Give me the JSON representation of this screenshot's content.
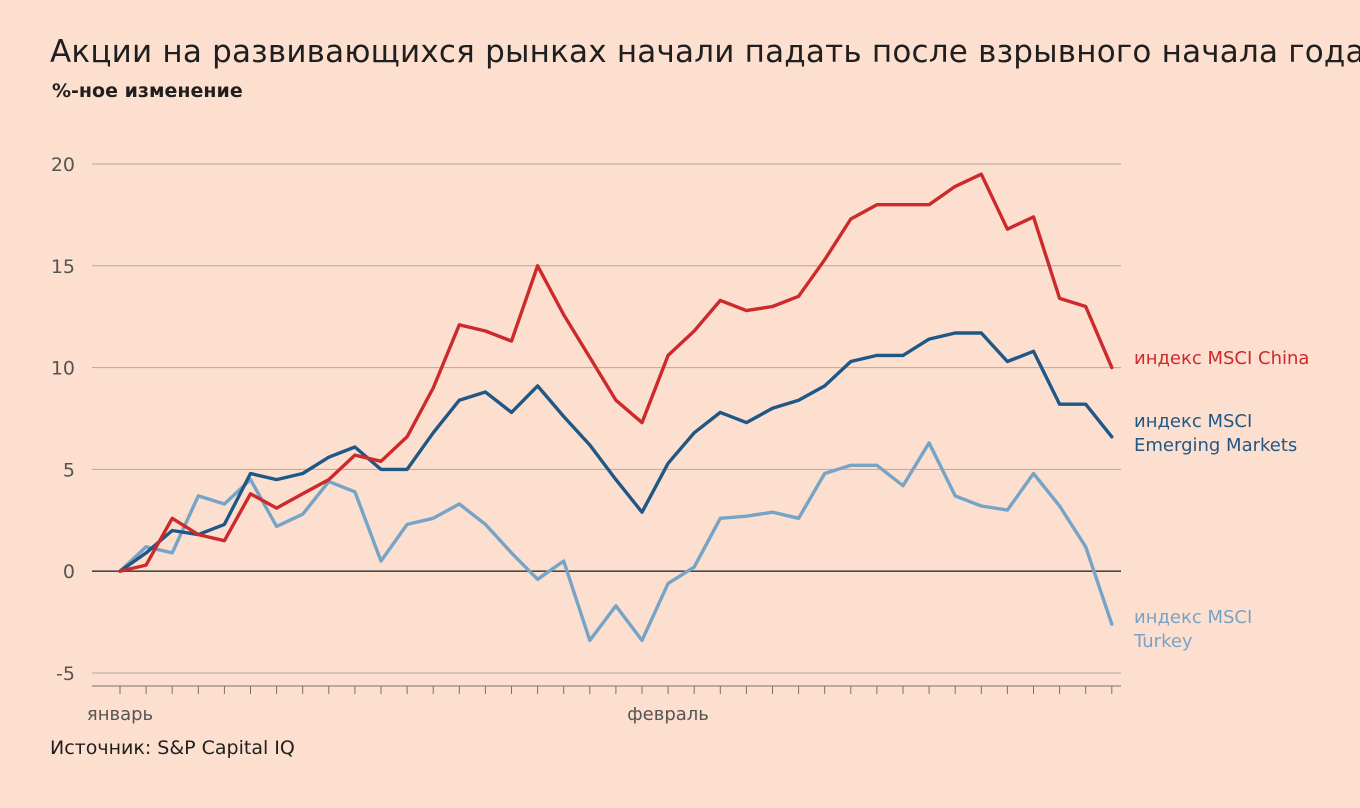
{
  "title": "Акции на развивающихся рынках начали падать после взрывного начала года",
  "subtitle": "%-ное изменение",
  "source": "Источник: S&P Capital IQ",
  "colors": {
    "background": "#fddfcf",
    "china": "#cc2a2c",
    "em": "#1f5887",
    "turkey": "#75a4c6"
  },
  "chart_data": {
    "type": "line",
    "title": "Акции на развивающихся рынках начали падать после взрывного начала года",
    "ylabel": "%-ное изменение",
    "xlabel": "",
    "ylim": [
      -5,
      20
    ],
    "yticks": [
      -5,
      0,
      5,
      10,
      15,
      20
    ],
    "x_tick_labels": [
      {
        "index": 0,
        "label": "январь"
      },
      {
        "index": 21,
        "label": "февраль"
      }
    ],
    "grid": true,
    "legend_placement": "right (labels at line ends)",
    "series": [
      {
        "name": "индекс MSCI China",
        "label_lines": [
          "индекс MSCI China"
        ],
        "color": "#cc2a2c",
        "values": [
          0,
          0.3,
          2.6,
          1.8,
          1.5,
          3.8,
          3.1,
          3.8,
          4.5,
          5.7,
          5.4,
          6.6,
          9.0,
          12.1,
          11.8,
          11.3,
          15.0,
          12.6,
          10.5,
          8.4,
          7.3,
          10.6,
          11.8,
          13.3,
          12.8,
          13.0,
          13.5,
          15.3,
          17.3,
          18.0,
          18.0,
          18.0,
          18.9,
          19.5,
          16.8,
          17.4,
          13.4,
          13.0,
          10.0
        ]
      },
      {
        "name": "индекс MSCI Emerging Markets",
        "label_lines": [
          "индекс MSCI",
          "Emerging Markets"
        ],
        "color": "#1f5887",
        "values": [
          0,
          0.9,
          2.0,
          1.8,
          2.3,
          4.8,
          4.5,
          4.8,
          5.6,
          6.1,
          5.0,
          5.0,
          6.8,
          8.4,
          8.8,
          7.8,
          9.1,
          7.6,
          6.2,
          4.5,
          2.9,
          5.3,
          6.8,
          7.8,
          7.3,
          8.0,
          8.4,
          9.1,
          10.3,
          10.6,
          10.6,
          11.4,
          11.7,
          11.7,
          10.3,
          10.8,
          8.2,
          8.2,
          6.6
        ]
      },
      {
        "name": "индекс MSCI Turkey",
        "label_lines": [
          "индекс MSCI",
          "Turkey"
        ],
        "color": "#75a4c6",
        "values": [
          0,
          1.2,
          0.9,
          3.7,
          3.3,
          4.5,
          2.2,
          2.8,
          4.4,
          3.9,
          0.5,
          2.3,
          2.6,
          3.3,
          2.3,
          0.9,
          -0.4,
          0.5,
          -3.4,
          -1.7,
          -3.4,
          -0.6,
          0.2,
          2.6,
          2.7,
          2.9,
          2.6,
          4.8,
          5.2,
          5.2,
          4.2,
          6.3,
          3.7,
          3.2,
          3.0,
          4.8,
          3.2,
          1.2,
          -2.6
        ]
      }
    ]
  }
}
